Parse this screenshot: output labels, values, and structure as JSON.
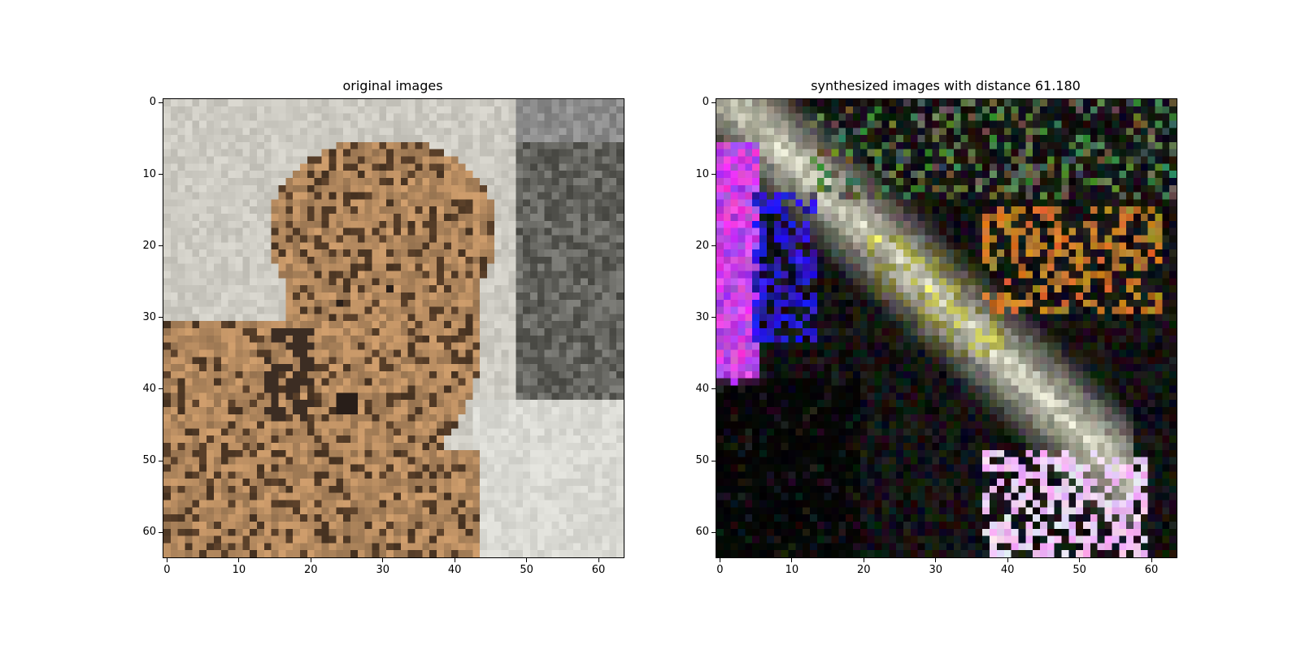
{
  "figure": {
    "panels": [
      {
        "title": "original images",
        "x_ticks": [
          "0",
          "10",
          "20",
          "30",
          "40",
          "50",
          "60"
        ],
        "y_ticks": [
          "0",
          "10",
          "20",
          "30",
          "40",
          "50",
          "60"
        ],
        "image_description_key": "cheetah-cub"
      },
      {
        "title": "synthesized images with distance 61.180",
        "x_ticks": [
          "0",
          "10",
          "20",
          "30",
          "40",
          "50",
          "60"
        ],
        "y_ticks": [
          "0",
          "10",
          "20",
          "30",
          "40",
          "50",
          "60"
        ],
        "image_description_key": "noisy-synthesis"
      }
    ]
  }
}
